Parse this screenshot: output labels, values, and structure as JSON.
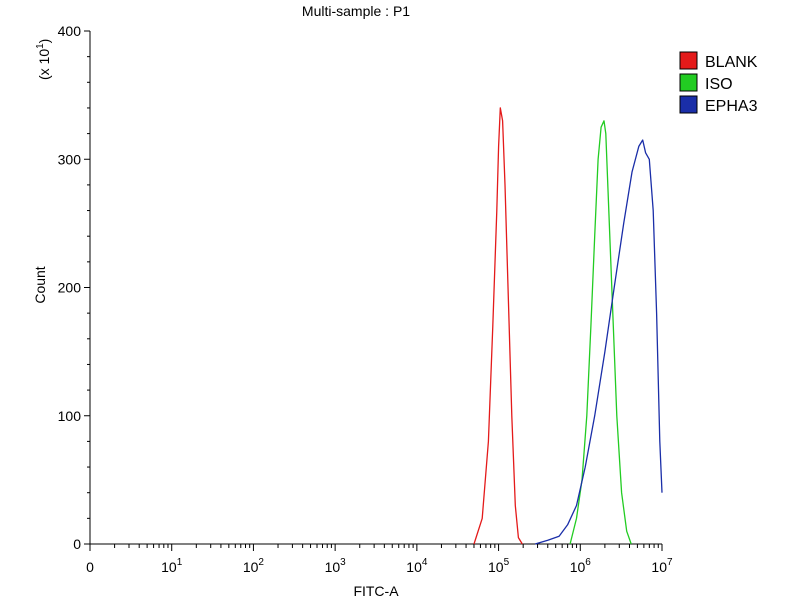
{
  "chart_data": {
    "type": "line",
    "title": "Multi-sample : P1",
    "xlabel": "FITC-A",
    "ylabel": "Count",
    "y_multiplier_label": "(x 10",
    "y_multiplier_exp": "1",
    "y_multiplier_close": ")",
    "xscale": "log",
    "xlim": [
      1,
      10000000
    ],
    "ylim": [
      0,
      40
    ],
    "grid": false,
    "legend_position": "right",
    "x_ticks": [
      {
        "value": 1,
        "base": "0",
        "exp": ""
      },
      {
        "value": 10,
        "base": "10",
        "exp": "1"
      },
      {
        "value": 100,
        "base": "10",
        "exp": "2"
      },
      {
        "value": 1000,
        "base": "10",
        "exp": "3"
      },
      {
        "value": 10000,
        "base": "10",
        "exp": "4"
      },
      {
        "value": 100000,
        "base": "10",
        "exp": "5"
      },
      {
        "value": 1000000,
        "base": "10",
        "exp": "6"
      },
      {
        "value": 10000000,
        "base": "10",
        "exp": "7"
      }
    ],
    "y_ticks": [
      {
        "value": 0,
        "label": "0"
      },
      {
        "value": 10,
        "label": "100"
      },
      {
        "value": 20,
        "label": "200"
      },
      {
        "value": 30,
        "label": "300"
      },
      {
        "value": 40,
        "label": "400"
      }
    ],
    "series": [
      {
        "name": "BLANK",
        "color": "#e41a1a",
        "x": [
          50000,
          63000,
          75000,
          85000,
          95000,
          100000,
          105000,
          112000,
          120000,
          132000,
          145000,
          160000,
          175000,
          195000
        ],
        "y": [
          0,
          2,
          8,
          17,
          26,
          31,
          34,
          33,
          28,
          19,
          10,
          3,
          0.5,
          0
        ]
      },
      {
        "name": "ISO",
        "color": "#22cc22",
        "x": [
          750000,
          900000,
          1050000,
          1200000,
          1350000,
          1500000,
          1650000,
          1800000,
          1950000,
          2050000,
          2200000,
          2500000,
          2800000,
          3200000,
          3700000,
          4200000
        ],
        "y": [
          0,
          2,
          5,
          10,
          17,
          24,
          30,
          32.5,
          33,
          32,
          27,
          18,
          10,
          4,
          1,
          0
        ]
      },
      {
        "name": "EPHA3",
        "color": "#1a2ea8",
        "x": [
          280000,
          400000,
          550000,
          700000,
          900000,
          1150000,
          1500000,
          2000000,
          2600000,
          3400000,
          4300000,
          5200000,
          5800000,
          6300000,
          7000000,
          7800000,
          8600000,
          9400000,
          10000000
        ],
        "y": [
          0,
          0.3,
          0.6,
          1.5,
          3,
          6,
          10,
          15,
          20,
          25,
          29,
          31,
          31.5,
          30.5,
          30,
          26,
          18,
          8,
          4
        ]
      }
    ]
  }
}
